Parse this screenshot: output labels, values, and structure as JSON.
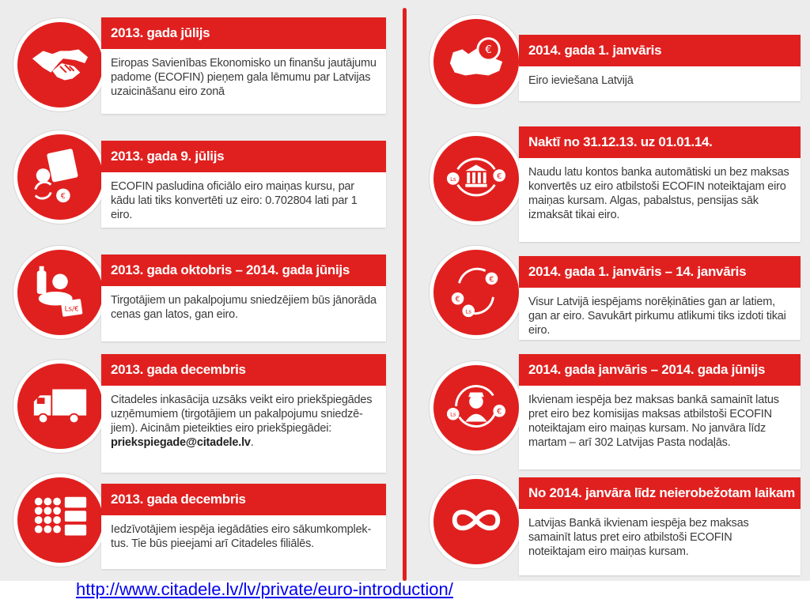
{
  "timeline": {
    "left": [
      {
        "title": "2013. gada jūlijs",
        "text": "Eiropas Savienības Ekonomisko un finanšu jautājumu padome (ECOFIN) pieņem gala lēmumu par Latvijas uzaicināšanu eiro zonā",
        "icon": "handshake-icon"
      },
      {
        "title": "2013. gada 9. jūlijs",
        "text": "ECOFIN pasludina oficiālo eiro maiņas kursu, par kādu lati tiks konvertēti uz eiro: 0.702804 lati par 1 eiro.",
        "icon": "money-exchange-icon"
      },
      {
        "title": "2013. gada oktobris – 2014. gada jūnijs",
        "text": "Tirgotājiem un pakalpojumu sniedzējiem būs jānorāda cenas gan latos, gan eiro.",
        "icon": "groceries-price-tag-icon"
      },
      {
        "title": "2013. gada decembris",
        "text": "Citadeles inkasācija uzsāks veikt eiro priekšpiegādes uzņēmumiem (tirgotājiem un pakalpojumu sniedzē-jiem). Aicinām pieteikties eiro priekšpiegādei:",
        "email": "priekspiegade@citadele.lv",
        "email_suffix": ".",
        "icon": "truck-icon"
      },
      {
        "title": "2013. gada decembris",
        "text": "Iedzīvotājiem iespēja iegādāties eiro sākumkomplek-tus. Tie būs pieejami arī Citadeles filiālēs.",
        "icon": "coin-kit-icon"
      }
    ],
    "right": [
      {
        "title": "2014. gada 1. janvāris",
        "text": "Eiro ieviešana Latvijā",
        "icon": "latvia-map-euro-icon"
      },
      {
        "title": "Naktī no 31.12.13. uz 01.01.14.",
        "text": "Naudu latu kontos banka automātiski un bez maksas konvertēs uz eiro atbilstoši ECOFIN noteiktajam eiro maiņas kursam. Algas, pabalstus, pensijas sāk izmaksāt tikai eiro.",
        "icon": "bank-conversion-icon"
      },
      {
        "title": "2014. gada 1. janvāris  – 14. janvāris",
        "text": "Visur Latvijā iespējams norēķināties gan ar latiem, gan ar eiro. Savukārt pirkumu atlikumi tiks izdoti tikai eiro.",
        "icon": "currency-cycle-icon"
      },
      {
        "title": "2014. gada janvāris – 2014. gada jūnijs",
        "text": "Ikvienam iespēja bez maksas bankā samainīt latus pret eiro bez komisijas maksas atbilstoši ECOFIN noteiktajam eiro maiņas kursam. No janvāra līdz martam – arī 302 Latvijas Pasta nodaļās.",
        "icon": "postman-exchange-icon"
      },
      {
        "title": "No 2014. janvāra līdz neierobežotam laikam",
        "text": "Latvijas Bankā ikvienam iespēja bez maksas samainīt latus pret eiro atbilstoši ECOFIN noteiktajam eiro maiņas kursam.",
        "icon": "infinity-icon"
      }
    ]
  },
  "glyphs": {
    "euro": "€",
    "lats": "Ls",
    "lats_percent": "Ls/€"
  },
  "footer": {
    "link_text": "http://www.citadele.lv/lv/private/euro-introduction/"
  },
  "colors": {
    "accent": "#e0201f",
    "background": "#ececec",
    "text": "#3a3a3a"
  }
}
